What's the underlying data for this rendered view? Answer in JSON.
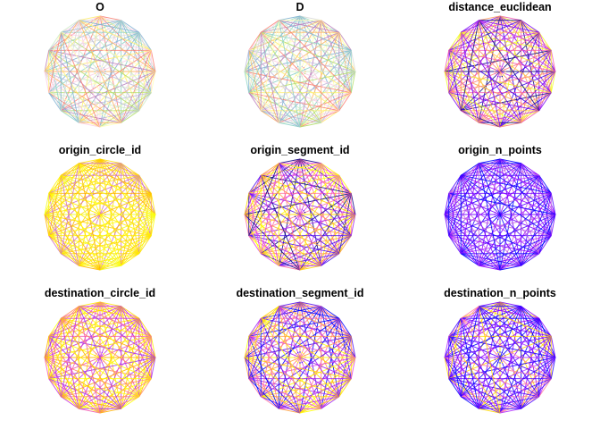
{
  "figure": {
    "node_count": 16,
    "panels": [
      {
        "id": "O",
        "title": "O",
        "palette": [
          "#8dd3c7",
          "#ffffb3",
          "#bebada",
          "#fb8072",
          "#80b1d3",
          "#fdb462",
          "#b3de69",
          "#fccde5",
          "#d9d9d9",
          "#bc80bd",
          "#ccebc5",
          "#ffed6f"
        ]
      },
      {
        "id": "D",
        "title": "D",
        "palette": [
          "#8dd3c7",
          "#ffffb3",
          "#bebada",
          "#fb8072",
          "#80b1d3",
          "#fdb462",
          "#b3de69",
          "#fccde5",
          "#d9d9d9",
          "#bc80bd",
          "#ccebc5",
          "#ffed6f"
        ]
      },
      {
        "id": "distance_euclidean",
        "title": "distance_euclidean",
        "palette": [
          "#0d0887",
          "#3a00e5",
          "#7b02f5",
          "#c42ee0",
          "#f359b0",
          "#ff7f7f",
          "#ff9f60",
          "#ffc94a",
          "#f0f921"
        ]
      },
      {
        "id": "origin_circle_id",
        "title": "origin_circle_id",
        "palette": [
          "#ffff00",
          "#fff000",
          "#ffe800",
          "#ffdd10",
          "#f0f921",
          "#ffd700",
          "#ffb000",
          "#d070c0"
        ]
      },
      {
        "id": "origin_segment_id",
        "title": "origin_segment_id",
        "palette": [
          "#ffff00",
          "#ffd700",
          "#ffa040",
          "#ff6fa0",
          "#e040e0",
          "#a020f0",
          "#5010f0",
          "#0d0887"
        ]
      },
      {
        "id": "origin_n_points",
        "title": "origin_n_points",
        "palette": [
          "#0000ff",
          "#2000ff",
          "#4b00ff",
          "#7000ff",
          "#9000ff",
          "#b030ff",
          "#c060e0"
        ]
      },
      {
        "id": "destination_circle_id",
        "title": "destination_circle_id",
        "palette": [
          "#ffff00",
          "#ffe800",
          "#ffd700",
          "#ffb000",
          "#ff8c60",
          "#f359b0",
          "#c42ee0",
          "#a030f0"
        ]
      },
      {
        "id": "destination_segment_id",
        "title": "destination_segment_id",
        "palette": [
          "#ffff00",
          "#ffd700",
          "#ffa040",
          "#ff6fa0",
          "#e040e0",
          "#a020f0",
          "#5010f0",
          "#0000ff"
        ]
      },
      {
        "id": "destination_n_points",
        "title": "destination_n_points",
        "palette": [
          "#0000ff",
          "#2000ff",
          "#4b00ff",
          "#7000ff",
          "#9000ff",
          "#b030ff",
          "#ff80a0",
          "#ffd700"
        ]
      }
    ]
  }
}
